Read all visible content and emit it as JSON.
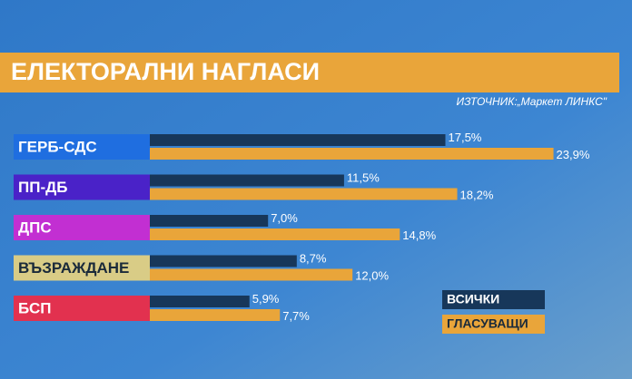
{
  "chart_data": {
    "type": "bar",
    "orientation": "horizontal",
    "title": "ЕЛЕКТОРАЛНИ НАГЛАСИ",
    "source": "ИЗТОЧНИК:„Маркет ЛИНКС\"",
    "categories": [
      "ГЕРБ-СДС",
      "ПП-ДБ",
      "ДПС",
      "ВЪЗРАЖДАНЕ",
      "БСП"
    ],
    "category_colors": [
      "#1f6ee0",
      "#4a22c8",
      "#c22fd2",
      "#d9cc86",
      "#e2314f"
    ],
    "series": [
      {
        "name": "ВСИЧКИ",
        "color": "#17375a",
        "values": [
          17.5,
          11.5,
          7.0,
          8.7,
          5.9
        ],
        "value_labels": [
          "17,5%",
          "11,5%",
          "7,0%",
          "8,7%",
          "5,9%"
        ]
      },
      {
        "name": "ГЛАСУВАЩИ",
        "color": "#e9a53a",
        "values": [
          23.9,
          18.2,
          14.8,
          12.0,
          7.7
        ],
        "value_labels": [
          "23,9%",
          "18,2%",
          "14,8%",
          "12,0%",
          "7,7%"
        ]
      }
    ]
  }
}
